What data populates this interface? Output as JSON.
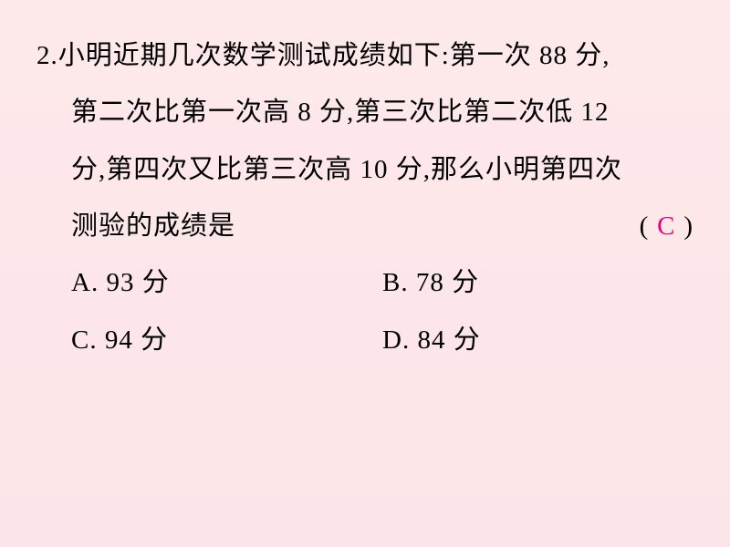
{
  "question": {
    "number": "2.",
    "line1": "小明近期几次数学测试成绩如下:第一次 88 分,",
    "line2": "第二次比第一次高 8 分,第三次比第二次低 12",
    "line3": "分,第四次又比第三次高 10 分,那么小明第四次",
    "line4_text": "测验的成绩是",
    "paren_open": "(",
    "paren_close": ")",
    "answer": "C"
  },
  "options": {
    "A": "A. 93 分",
    "B": "B. 78 分",
    "C": "C. 94 分",
    "D": "D. 84 分"
  },
  "style": {
    "bg_top": "#fde8ea",
    "bg_bottom": "#fce5e8",
    "text_color": "#000000",
    "answer_color": "#e6007e",
    "font_size": 29,
    "line_height": 2.15
  }
}
